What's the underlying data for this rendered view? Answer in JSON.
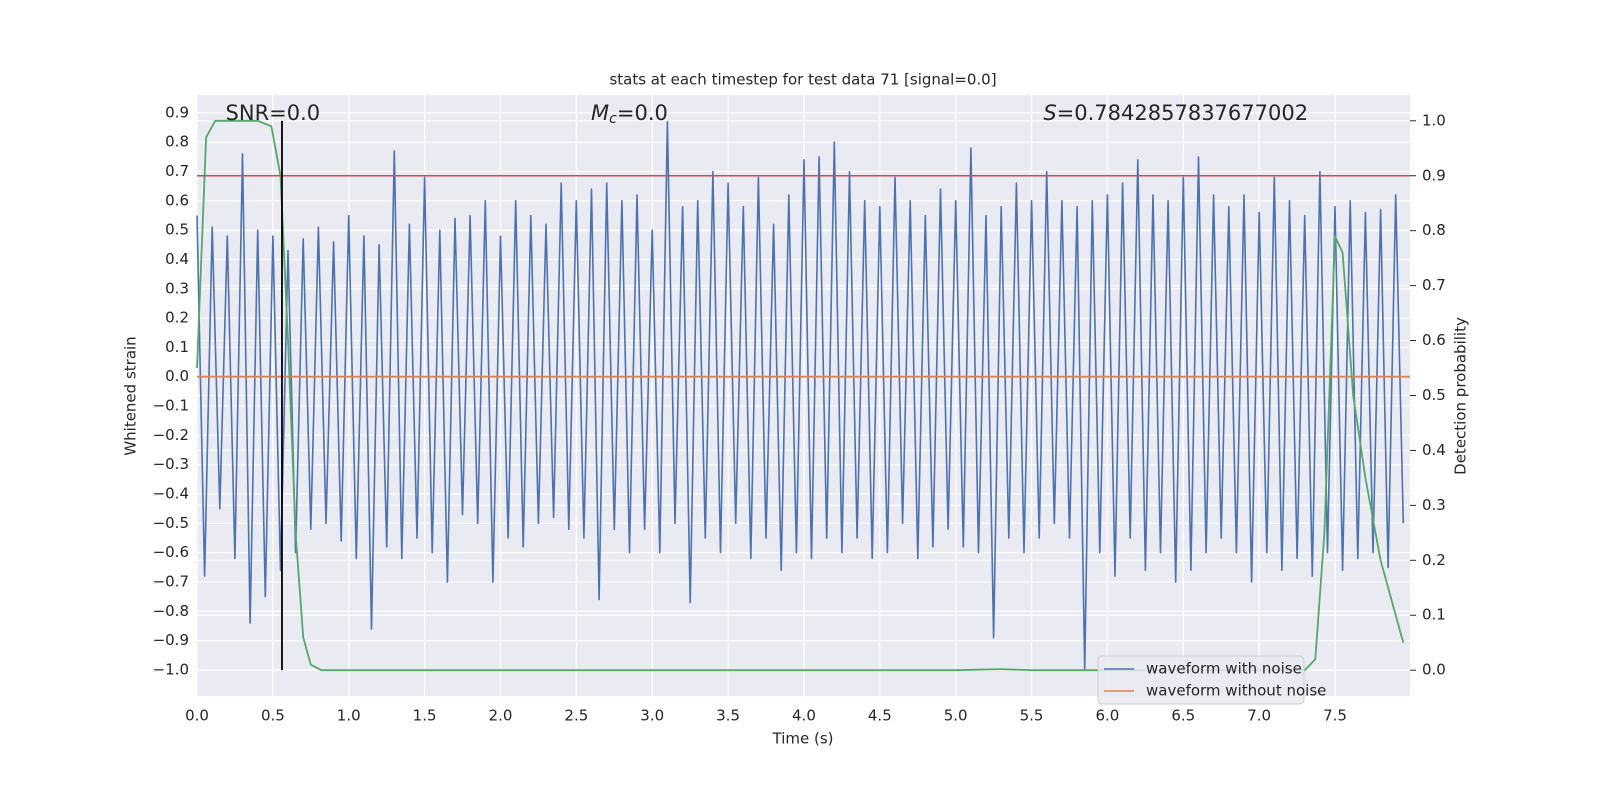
{
  "chart_data": {
    "type": "line",
    "title": "stats at each timestep for test data 71 [signal=0.0]",
    "xlabel": "Time (s)",
    "ylabel": "Whitened strain",
    "y2label": "Detection probability",
    "xlim": [
      0,
      7.994
    ],
    "ylim": [
      -1.089,
      0.961
    ],
    "y2lim": [
      -0.047,
      1.047
    ],
    "xticks": [
      {
        "value": 0,
        "label": "0.0"
      },
      0.5,
      {
        "value": 1,
        "label": "1.0"
      },
      1.5,
      {
        "value": 2,
        "label": "2.0"
      },
      2.5,
      {
        "value": 3,
        "label": "3.0"
      },
      3.5,
      {
        "value": 4,
        "label": "4.0"
      },
      4.5,
      {
        "value": 5,
        "label": "5.0"
      },
      5.5,
      {
        "value": 6,
        "label": "6.0"
      },
      6.5,
      {
        "value": 7,
        "label": "7.0"
      },
      7.5
    ],
    "yticks": [
      {
        "value": -1,
        "label": "−1.0"
      },
      {
        "value": -0.9,
        "label": "−0.9"
      },
      {
        "value": -0.8,
        "label": "−0.8"
      },
      {
        "value": -0.7,
        "label": "−0.7"
      },
      {
        "value": -0.6,
        "label": "−0.6"
      },
      {
        "value": -0.5,
        "label": "−0.5"
      },
      {
        "value": -0.4,
        "label": "−0.4"
      },
      {
        "value": -0.3,
        "label": "−0.3"
      },
      {
        "value": -0.2,
        "label": "−0.2"
      },
      {
        "value": -0.1,
        "label": "−0.1"
      },
      {
        "value": 0,
        "label": "0.0"
      },
      0.1,
      0.2,
      0.3,
      0.4,
      0.5,
      0.6,
      0.7,
      0.8,
      0.9
    ],
    "y2ticks": [
      {
        "value": 0,
        "label": "0.0"
      },
      0.1,
      0.2,
      0.3,
      0.4,
      0.5,
      0.6,
      0.7,
      0.8,
      0.9,
      {
        "value": 1,
        "label": "1.0"
      }
    ],
    "grid": true,
    "legend": "lower right",
    "series": [
      {
        "name": "waveform with noise",
        "color": "#4c72b0",
        "x": [
          0,
          0.05,
          0.1,
          0.15,
          0.2,
          0.25,
          0.3,
          0.35,
          0.4,
          0.45,
          0.5,
          0.55,
          0.6,
          0.65,
          0.7,
          0.75,
          0.8,
          0.85,
          0.9,
          0.95,
          1,
          1.05,
          1.1,
          1.15,
          1.2,
          1.25,
          1.3,
          1.35,
          1.4,
          1.45,
          1.5,
          1.55,
          1.6,
          1.65,
          1.7,
          1.75,
          1.8,
          1.85,
          1.9,
          1.95,
          2,
          2.05,
          2.1,
          2.15,
          2.2,
          2.25,
          2.3,
          2.35,
          2.4,
          2.45,
          2.5,
          2.55,
          2.6,
          2.65,
          2.7,
          2.75,
          2.8,
          2.85,
          2.9,
          2.95,
          3,
          3.05,
          3.1,
          3.15,
          3.2,
          3.25,
          3.3,
          3.35,
          3.4,
          3.45,
          3.5,
          3.55,
          3.6,
          3.65,
          3.7,
          3.75,
          3.8,
          3.85,
          3.9,
          3.95,
          4,
          4.05,
          4.1,
          4.15,
          4.2,
          4.25,
          4.3,
          4.35,
          4.4,
          4.45,
          4.5,
          4.55,
          4.6,
          4.65,
          4.7,
          4.75,
          4.8,
          4.85,
          4.9,
          4.95,
          5,
          5.05,
          5.1,
          5.15,
          5.2,
          5.25,
          5.3,
          5.35,
          5.4,
          5.45,
          5.5,
          5.55,
          5.6,
          5.65,
          5.7,
          5.75,
          5.8,
          5.85,
          5.9,
          5.95,
          6,
          6.05,
          6.1,
          6.15,
          6.2,
          6.25,
          6.3,
          6.35,
          6.4,
          6.45,
          6.5,
          6.55,
          6.6,
          6.65,
          6.7,
          6.75,
          6.8,
          6.85,
          6.9,
          6.95,
          7,
          7.05,
          7.1,
          7.15,
          7.2,
          7.25,
          7.3,
          7.35,
          7.4,
          7.45,
          7.5,
          7.55,
          7.6,
          7.65,
          7.7,
          7.75,
          7.8,
          7.85,
          7.9,
          7.95
        ],
        "values": [
          0.55,
          -0.68,
          0.51,
          -0.45,
          0.48,
          -0.62,
          0.76,
          -0.84,
          0.5,
          -0.75,
          0.48,
          -0.66,
          0.43,
          -0.6,
          0.47,
          -0.52,
          0.51,
          -0.5,
          0.46,
          -0.56,
          0.55,
          -0.62,
          0.48,
          -0.86,
          0.45,
          -0.58,
          0.77,
          -0.62,
          0.52,
          -0.55,
          0.68,
          -0.6,
          0.5,
          -0.7,
          0.54,
          -0.47,
          0.55,
          -0.5,
          0.6,
          -0.7,
          0.48,
          -0.55,
          0.6,
          -0.58,
          0.55,
          -0.5,
          0.52,
          -0.48,
          0.66,
          -0.52,
          0.6,
          -0.55,
          0.64,
          -0.76,
          0.66,
          -0.52,
          0.6,
          -0.6,
          0.62,
          -0.52,
          0.5,
          -0.6,
          0.87,
          -0.5,
          0.58,
          -0.77,
          0.6,
          -0.55,
          0.7,
          -0.6,
          0.66,
          -0.5,
          0.58,
          -0.62,
          0.68,
          -0.55,
          0.52,
          -0.66,
          0.62,
          -0.6,
          0.74,
          -0.62,
          0.75,
          -0.55,
          0.8,
          -0.6,
          0.7,
          -0.55,
          0.6,
          -0.62,
          0.58,
          -0.6,
          0.68,
          -0.5,
          0.6,
          -0.62,
          0.55,
          -0.58,
          0.64,
          -0.52,
          0.6,
          -0.58,
          0.78,
          -0.6,
          0.55,
          -0.89,
          0.58,
          -0.55,
          0.66,
          -0.6,
          0.6,
          -0.55,
          0.7,
          -0.5,
          0.6,
          -0.55,
          0.58,
          -1.0,
          0.6,
          -0.6,
          0.62,
          -0.68,
          0.66,
          -0.55,
          0.74,
          -0.66,
          0.62,
          -0.6,
          0.6,
          -0.7,
          0.68,
          -0.66,
          0.75,
          -0.6,
          0.62,
          -0.55,
          0.58,
          -0.6,
          0.62,
          -0.7,
          0.56,
          -0.6,
          0.68,
          -0.66,
          0.6,
          -0.62,
          0.55,
          -0.68,
          0.7,
          -0.6,
          0.58,
          -0.66,
          0.6,
          -0.62,
          0.56,
          -0.6,
          0.57,
          -0.65,
          0.62,
          -0.5
        ]
      },
      {
        "name": "waveform without noise",
        "color": "#dd8452",
        "x": [
          0,
          7.994
        ],
        "values": [
          0,
          0
        ]
      },
      {
        "name": "Detection probability",
        "color": "#55a868",
        "axis": "y2",
        "x": [
          0,
          0.06,
          0.12,
          0.2,
          0.3,
          0.4,
          0.49,
          0.55,
          0.6,
          0.65,
          0.7,
          0.75,
          0.82,
          5,
          5.3,
          5.5,
          7.3,
          7.37,
          7.43,
          7.5,
          7.55,
          7.62,
          7.7,
          7.8,
          7.9,
          7.95
        ],
        "values": [
          0.55,
          0.97,
          1.0,
          1.0,
          1.0,
          1.0,
          0.99,
          0.9,
          0.6,
          0.25,
          0.06,
          0.01,
          0.0,
          0.0,
          0.002,
          0.0,
          0.0,
          0.02,
          0.25,
          0.79,
          0.76,
          0.5,
          0.35,
          0.2,
          0.1,
          0.05
        ]
      }
    ],
    "threshold": {
      "value": 0.9,
      "axis": "y2",
      "color": "#c44e52"
    },
    "marker_time": {
      "value": 0.56,
      "color": "#000000"
    },
    "annotations": {
      "snr": {
        "text": "SNR=0.0",
        "x": 0.5
      },
      "mc": {
        "symbol": "M",
        "subscript": "c",
        "text": "=0.0",
        "x": 2.85
      },
      "s": {
        "symbol": "S",
        "text": "=0.7842857837677002",
        "x": 6.45
      }
    }
  }
}
